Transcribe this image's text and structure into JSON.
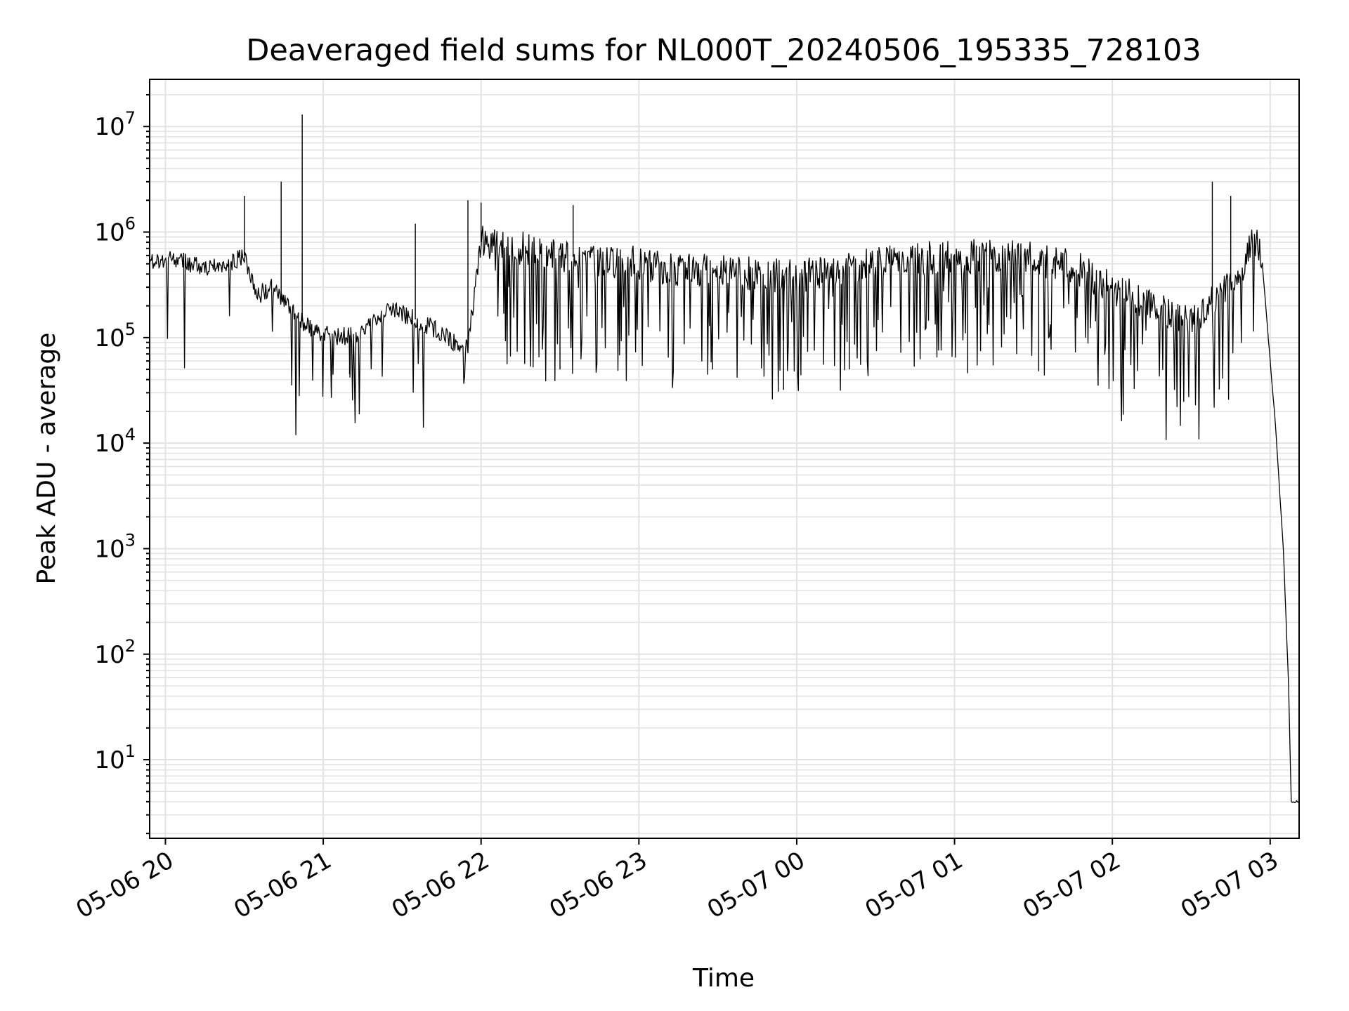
{
  "chart_data": {
    "type": "line",
    "title": "Deaveraged field sums for NL000T_20240506_195335_728103",
    "xlabel": "Time",
    "ylabel": "Peak ADU - average",
    "y_scale": "log",
    "ylim": [
      1.8,
      28000000
    ],
    "xlim": [
      "2024-05-06 19:54",
      "2024-05-07 03:11"
    ],
    "grid": true,
    "x_ticks": [
      "05-06 20",
      "05-06 21",
      "05-06 22",
      "05-06 23",
      "05-07 00",
      "05-07 01",
      "05-07 02",
      "05-07 03"
    ],
    "y_ticks": [
      {
        "base": "10",
        "exp": "1",
        "value": 10
      },
      {
        "base": "10",
        "exp": "2",
        "value": 100
      },
      {
        "base": "10",
        "exp": "3",
        "value": 1000
      },
      {
        "base": "10",
        "exp": "4",
        "value": 10000
      },
      {
        "base": "10",
        "exp": "5",
        "value": 100000
      },
      {
        "base": "10",
        "exp": "6",
        "value": 1000000
      },
      {
        "base": "10",
        "exp": "7",
        "value": 10000000
      }
    ],
    "series": [
      {
        "color": "#000000",
        "x": [
          "2024-05-06 19:54",
          "2024-05-06 20:05",
          "2024-05-06 20:15",
          "2024-05-06 20:25",
          "2024-05-06 20:30",
          "2024-05-06 20:35",
          "2024-05-06 20:40",
          "2024-05-06 20:48",
          "2024-05-06 20:55",
          "2024-05-06 21:05",
          "2024-05-06 21:15",
          "2024-05-06 21:25",
          "2024-05-06 21:30",
          "2024-05-06 21:40",
          "2024-05-06 21:50",
          "2024-05-06 21:55",
          "2024-05-06 22:00",
          "2024-05-06 22:15",
          "2024-05-06 22:30",
          "2024-05-06 22:45",
          "2024-05-06 23:00",
          "2024-05-06 23:15",
          "2024-05-06 23:30",
          "2024-05-06 23:45",
          "2024-05-07 00:00",
          "2024-05-07 00:15",
          "2024-05-07 00:30",
          "2024-05-07 00:45",
          "2024-05-07 01:00",
          "2024-05-07 01:15",
          "2024-05-07 01:30",
          "2024-05-07 01:45",
          "2024-05-07 02:00",
          "2024-05-07 02:15",
          "2024-05-07 02:30",
          "2024-05-07 02:40",
          "2024-05-07 02:50",
          "2024-05-07 02:53",
          "2024-05-07 02:55",
          "2024-05-07 02:57",
          "2024-05-07 03:00",
          "2024-05-07 03:02",
          "2024-05-07 03:05",
          "2024-05-07 03:07",
          "2024-05-07 03:08",
          "2024-05-07 03:11"
        ],
        "y": [
          500000,
          550000,
          450000,
          500000,
          600000,
          250000,
          300000,
          180000,
          120000,
          100000,
          110000,
          180000,
          170000,
          130000,
          90000,
          85000,
          800000,
          700000,
          600000,
          550000,
          500000,
          450000,
          420000,
          400000,
          380000,
          450000,
          520000,
          550000,
          580000,
          600000,
          550000,
          480000,
          300000,
          200000,
          150000,
          230000,
          480000,
          900000,
          800000,
          500000,
          60000,
          15000,
          1000,
          50,
          4,
          4
        ]
      }
    ],
    "spikes": [
      {
        "x": "2024-05-06 20:30",
        "y": 2200000
      },
      {
        "x": "2024-05-06 20:44",
        "y": 3000000
      },
      {
        "x": "2024-05-06 20:52",
        "y": 13000000
      },
      {
        "x": "2024-05-06 21:35",
        "y": 1200000
      },
      {
        "x": "2024-05-06 21:55",
        "y": 2000000
      },
      {
        "x": "2024-05-06 22:00",
        "y": 1900000
      },
      {
        "x": "2024-05-06 22:35",
        "y": 1800000
      },
      {
        "x": "2024-05-07 02:38",
        "y": 3000000
      },
      {
        "x": "2024-05-07 02:45",
        "y": 2200000
      }
    ],
    "dips": [
      {
        "x": "2024-05-06 21:10",
        "y": 45000
      },
      {
        "x": "2024-05-06 22:30",
        "y": 50000
      },
      {
        "x": "2024-05-06 23:28",
        "y": 50000
      },
      {
        "x": "2024-05-06 23:55",
        "y": 32000
      },
      {
        "x": "2024-05-07 00:20",
        "y": 50000
      },
      {
        "x": "2024-05-07 01:05",
        "y": 46000
      },
      {
        "x": "2024-05-07 01:32",
        "y": 48000
      }
    ]
  }
}
